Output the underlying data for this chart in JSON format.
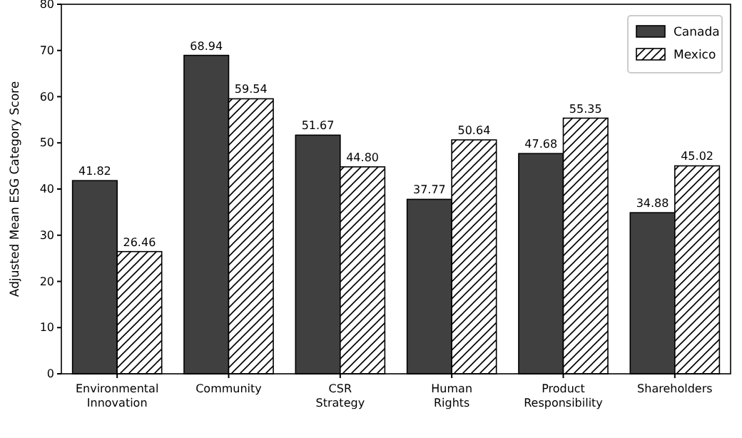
{
  "chart_data": {
    "type": "bar",
    "ylabel": "Adjusted Mean ESG Category Score",
    "categories": [
      "Environmental Innovation",
      "Community",
      "CSR Strategy",
      "Human Rights",
      "Product Responsibility",
      "Shareholders"
    ],
    "series": [
      {
        "name": "Canada",
        "color": "#404040",
        "values": [
          41.82,
          68.94,
          51.67,
          37.77,
          47.68,
          34.88
        ],
        "value_labels": [
          "41.82",
          "68.94",
          "51.67",
          "37.77",
          "47.68",
          "34.88"
        ]
      },
      {
        "name": "Mexico",
        "color": "#ffffff",
        "values": [
          26.46,
          59.54,
          44.8,
          50.64,
          55.35,
          45.02
        ],
        "value_labels": [
          "26.46",
          "59.54",
          "44.80",
          "50.64",
          "55.35",
          "45.02"
        ]
      }
    ],
    "ylim": [
      0,
      80
    ],
    "yticks": [
      0,
      10,
      20,
      30,
      40,
      50,
      60,
      70,
      80
    ],
    "grid": false,
    "legend": "top right"
  }
}
